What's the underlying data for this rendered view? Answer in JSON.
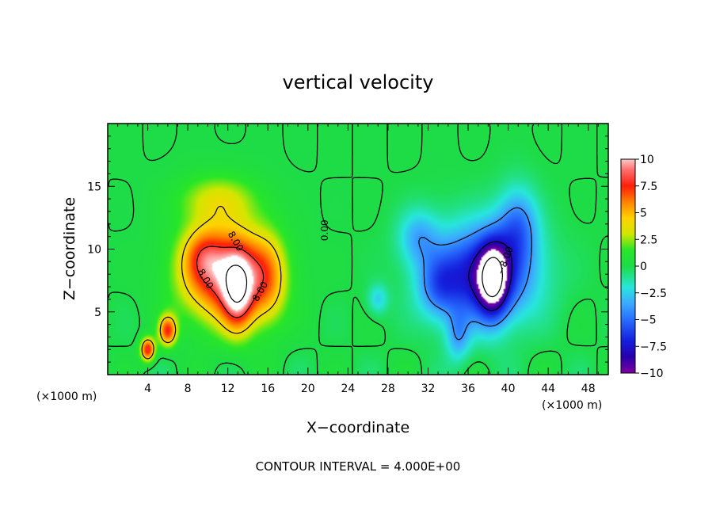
{
  "chart_data": {
    "type": "heatmap",
    "title": "vertical velocity",
    "xlabel": "X−coordinate",
    "ylabel": "Z−coordinate",
    "x_unit": "(×1000 m)",
    "y_unit": "(×1000 m)",
    "xlim": [
      0,
      50
    ],
    "ylim": [
      0,
      20
    ],
    "x_ticks": [
      4,
      8,
      12,
      16,
      20,
      24,
      28,
      32,
      36,
      40,
      44,
      48
    ],
    "x_tick_labels": [
      "4",
      "8",
      "12",
      "16",
      "20",
      "24",
      "28",
      "32",
      "36",
      "40",
      "44",
      "48"
    ],
    "y_ticks": [
      5,
      10,
      15
    ],
    "y_tick_labels": [
      "5",
      "10",
      "15"
    ],
    "colorbar": {
      "min": -10,
      "max": 10,
      "ticks": [
        10,
        7.5,
        5,
        2.5,
        0,
        -2.5,
        -5,
        -7.5,
        -10
      ],
      "tick_labels": [
        "10",
        "7.5",
        "5",
        "2.5",
        "0",
        "−2.5",
        "−5",
        "−7.5",
        "−10"
      ]
    },
    "contour_interval_text": "CONTOUR INTERVAL = 4.000E+00",
    "contour_labels": [
      "8.00",
      "8.00",
      "8.00",
      "0.00",
      "−8.00"
    ],
    "features": [
      {
        "kind": "updraft",
        "x": 12,
        "z": 8,
        "sx": 4.5,
        "sz": 3.8,
        "w": 9
      },
      {
        "kind": "updraft",
        "x": 13,
        "z": 6.5,
        "sx": 1.5,
        "sz": 3.0,
        "w": 6
      },
      {
        "kind": "updraft",
        "x": 9.5,
        "z": 9.5,
        "sx": 2.0,
        "sz": 2.2,
        "w": 3
      },
      {
        "kind": "updraft",
        "x": 16,
        "z": 7.5,
        "sx": 1.8,
        "sz": 3.5,
        "w": 3
      },
      {
        "kind": "updraft",
        "x": 11,
        "z": 14,
        "sx": 4.0,
        "sz": 2.0,
        "w": 3
      },
      {
        "kind": "updraft",
        "x": 4,
        "z": 2,
        "sx": 0.7,
        "sz": 0.9,
        "w": 8
      },
      {
        "kind": "updraft",
        "x": 6,
        "z": 3.5,
        "sx": 0.9,
        "sz": 1.2,
        "w": 7
      },
      {
        "kind": "downdraft",
        "x": 37.5,
        "z": 8,
        "sx": 5.0,
        "sz": 3.8,
        "w": -8
      },
      {
        "kind": "downdraft",
        "x": 38.5,
        "z": 7.5,
        "sx": 1.5,
        "sz": 3.0,
        "w": -7
      },
      {
        "kind": "downdraft",
        "x": 33,
        "z": 7,
        "sx": 2.0,
        "sz": 2.5,
        "w": -3
      },
      {
        "kind": "downdraft",
        "x": 31,
        "z": 11,
        "sx": 2.0,
        "sz": 2.2,
        "w": -3
      },
      {
        "kind": "downdraft",
        "x": 41,
        "z": 12,
        "sx": 2.0,
        "sz": 3.0,
        "w": -4
      },
      {
        "kind": "downdraft",
        "x": 35,
        "z": 3,
        "sx": 1.2,
        "sz": 2.0,
        "w": -3
      },
      {
        "kind": "downdraft",
        "x": 27,
        "z": 6,
        "sx": 1.0,
        "sz": 1.2,
        "w": -2.5
      }
    ]
  }
}
